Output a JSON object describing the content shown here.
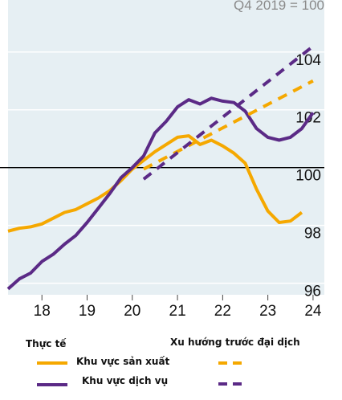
{
  "chart_data": {
    "type": "line",
    "unit_label": "Q4 2019 = 100",
    "x_ticks": [
      "18",
      "19",
      "20",
      "21",
      "22",
      "23",
      "24"
    ],
    "y_ticks": [
      "96",
      "98",
      "100",
      "102",
      "104"
    ],
    "xlim": [
      2017.25,
      2024.25
    ],
    "ylim": [
      95.6,
      105.8
    ],
    "reference_line": 100,
    "grid": "horizontal",
    "series": [
      {
        "name": "Khu vực sản xuất",
        "group": "Thực tế",
        "style": "solid",
        "color": "#f5a800",
        "points": [
          [
            2017.25,
            97.8
          ],
          [
            2017.5,
            97.9
          ],
          [
            2017.75,
            97.95
          ],
          [
            2018.0,
            98.05
          ],
          [
            2018.25,
            98.25
          ],
          [
            2018.5,
            98.45
          ],
          [
            2018.75,
            98.55
          ],
          [
            2019.0,
            98.75
          ],
          [
            2019.25,
            98.95
          ],
          [
            2019.5,
            99.2
          ],
          [
            2019.75,
            99.55
          ],
          [
            2020.0,
            99.95
          ],
          [
            2020.25,
            100.25
          ],
          [
            2020.5,
            100.55
          ],
          [
            2020.75,
            100.8
          ],
          [
            2021.0,
            101.05
          ],
          [
            2021.25,
            101.1
          ],
          [
            2021.5,
            100.8
          ],
          [
            2021.75,
            100.95
          ],
          [
            2022.0,
            100.75
          ],
          [
            2022.25,
            100.5
          ],
          [
            2022.5,
            100.15
          ],
          [
            2022.75,
            99.25
          ],
          [
            2023.0,
            98.5
          ],
          [
            2023.25,
            98.1
          ],
          [
            2023.5,
            98.15
          ],
          [
            2023.75,
            98.45
          ]
        ]
      },
      {
        "name": "Khu vực dịch vụ",
        "group": "Thực tế",
        "style": "solid",
        "color": "#5b2a86",
        "points": [
          [
            2017.25,
            95.8
          ],
          [
            2017.5,
            96.15
          ],
          [
            2017.75,
            96.35
          ],
          [
            2018.0,
            96.75
          ],
          [
            2018.25,
            97.0
          ],
          [
            2018.5,
            97.35
          ],
          [
            2018.75,
            97.65
          ],
          [
            2019.0,
            98.1
          ],
          [
            2019.25,
            98.6
          ],
          [
            2019.5,
            99.1
          ],
          [
            2019.75,
            99.65
          ],
          [
            2020.0,
            100.0
          ],
          [
            2020.25,
            100.4
          ],
          [
            2020.5,
            101.2
          ],
          [
            2020.75,
            101.6
          ],
          [
            2021.0,
            102.1
          ],
          [
            2021.25,
            102.35
          ],
          [
            2021.5,
            102.2
          ],
          [
            2021.75,
            102.4
          ],
          [
            2022.0,
            102.3
          ],
          [
            2022.25,
            102.25
          ],
          [
            2022.5,
            101.95
          ],
          [
            2022.75,
            101.35
          ],
          [
            2023.0,
            101.05
          ],
          [
            2023.25,
            100.95
          ],
          [
            2023.5,
            101.05
          ],
          [
            2023.75,
            101.35
          ],
          [
            2024.0,
            101.9
          ]
        ]
      },
      {
        "name": "Khu vực sản xuất",
        "group": "Xu hướng trước đại dịch",
        "style": "dashed",
        "color": "#f5a800",
        "points": [
          [
            2020.25,
            99.95
          ],
          [
            2024.0,
            103.0
          ]
        ]
      },
      {
        "name": "Khu vực dịch vụ",
        "group": "Xu hướng trước đại dịch",
        "style": "dashed",
        "color": "#5b2a86",
        "points": [
          [
            2020.25,
            99.6
          ],
          [
            2024.0,
            104.2
          ]
        ]
      }
    ]
  },
  "legend": {
    "actual_header": "Thực tế",
    "trend_header": "Xu hướng trước đại dịch",
    "manufacturing_label": "Khu vực sản xuất",
    "services_label": "Khu vực dịch vụ",
    "manufacturing_color": "#f5a800",
    "services_color": "#5b2a86"
  }
}
